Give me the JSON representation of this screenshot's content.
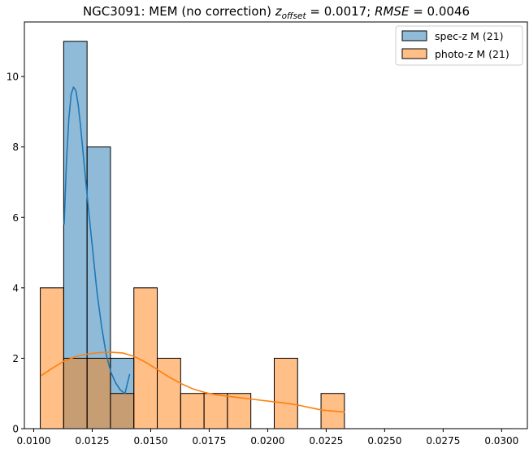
{
  "chart_data": {
    "type": "bar",
    "title": {
      "prefix": "NGC3091: MEM (no correction) ",
      "z_var": "z",
      "z_sub": "offset",
      "z_value": " = 0.0017; ",
      "rmse_var": "RMSE",
      "rmse_value": " = 0.0046"
    },
    "xlabel": "",
    "ylabel": "",
    "xlim": [
      0.0096,
      0.0311
    ],
    "ylim": [
      0,
      11.55
    ],
    "x_ticks": [
      {
        "value": 0.01,
        "label": "0.0100"
      },
      {
        "value": 0.0125,
        "label": "0.0125"
      },
      {
        "value": 0.015,
        "label": "0.0150"
      },
      {
        "value": 0.0175,
        "label": "0.0175"
      },
      {
        "value": 0.02,
        "label": "0.0200"
      },
      {
        "value": 0.0225,
        "label": "0.0225"
      },
      {
        "value": 0.025,
        "label": "0.0250"
      },
      {
        "value": 0.0275,
        "label": "0.0275"
      },
      {
        "value": 0.03,
        "label": "0.0300"
      }
    ],
    "y_ticks": [
      {
        "value": 0,
        "label": "0"
      },
      {
        "value": 2,
        "label": "2"
      },
      {
        "value": 4,
        "label": "4"
      },
      {
        "value": 6,
        "label": "6"
      },
      {
        "value": 8,
        "label": "8"
      },
      {
        "value": 10,
        "label": "10"
      }
    ],
    "grid": false,
    "legend_position": "top-right",
    "reference_line": {
      "y": 0,
      "x_range": [
        0.0103,
        0.0305
      ]
    },
    "series": [
      {
        "name": "spec-z M (21)",
        "color": "#1f77b4",
        "bins": [
          {
            "x0": 0.01128,
            "x1": 0.01228,
            "count": 11
          },
          {
            "x0": 0.01228,
            "x1": 0.01328,
            "count": 8
          },
          {
            "x0": 0.01328,
            "x1": 0.01428,
            "count": 2
          }
        ],
        "kde": [
          [
            0.0113,
            5.8
          ],
          [
            0.0114,
            7.6
          ],
          [
            0.0115,
            8.8
          ],
          [
            0.0116,
            9.5
          ],
          [
            0.0117,
            9.7
          ],
          [
            0.0118,
            9.6
          ],
          [
            0.0119,
            9.2
          ],
          [
            0.012,
            8.6
          ],
          [
            0.0121,
            7.9
          ],
          [
            0.0122,
            7.2
          ],
          [
            0.0123,
            6.5
          ],
          [
            0.0125,
            5.2
          ],
          [
            0.0127,
            3.9
          ],
          [
            0.0129,
            2.9
          ],
          [
            0.0131,
            2.1
          ],
          [
            0.0133,
            1.6
          ],
          [
            0.0135,
            1.3
          ],
          [
            0.0137,
            1.1
          ],
          [
            0.0139,
            1.0
          ],
          [
            0.0141,
            1.55
          ]
        ]
      },
      {
        "name": "photo-z M (21)",
        "color": "#ff7f0e",
        "bins": [
          {
            "x0": 0.01028,
            "x1": 0.01128,
            "count": 4
          },
          {
            "x0": 0.01128,
            "x1": 0.01228,
            "count": 2
          },
          {
            "x0": 0.01228,
            "x1": 0.01328,
            "count": 2
          },
          {
            "x0": 0.01328,
            "x1": 0.01428,
            "count": 1
          },
          {
            "x0": 0.01428,
            "x1": 0.01528,
            "count": 4
          },
          {
            "x0": 0.01528,
            "x1": 0.01628,
            "count": 2
          },
          {
            "x0": 0.01628,
            "x1": 0.01728,
            "count": 1
          },
          {
            "x0": 0.01728,
            "x1": 0.01828,
            "count": 1
          },
          {
            "x0": 0.01828,
            "x1": 0.01928,
            "count": 1
          },
          {
            "x0": 0.01928,
            "x1": 0.02028,
            "count": 0
          },
          {
            "x0": 0.02028,
            "x1": 0.02128,
            "count": 2
          },
          {
            "x0": 0.02128,
            "x1": 0.02228,
            "count": 0
          },
          {
            "x0": 0.02228,
            "x1": 0.02328,
            "count": 1
          }
        ],
        "kde": [
          [
            0.0103,
            1.5
          ],
          [
            0.0108,
            1.72
          ],
          [
            0.0113,
            1.92
          ],
          [
            0.0118,
            2.05
          ],
          [
            0.0123,
            2.12
          ],
          [
            0.0128,
            2.16
          ],
          [
            0.0133,
            2.17
          ],
          [
            0.0138,
            2.15
          ],
          [
            0.0143,
            2.05
          ],
          [
            0.0148,
            1.88
          ],
          [
            0.0153,
            1.67
          ],
          [
            0.0158,
            1.46
          ],
          [
            0.0163,
            1.28
          ],
          [
            0.0168,
            1.13
          ],
          [
            0.0173,
            1.03
          ],
          [
            0.0178,
            0.96
          ],
          [
            0.0183,
            0.92
          ],
          [
            0.0188,
            0.88
          ],
          [
            0.0193,
            0.84
          ],
          [
            0.0198,
            0.8
          ],
          [
            0.0203,
            0.76
          ],
          [
            0.0208,
            0.72
          ],
          [
            0.0213,
            0.67
          ],
          [
            0.0218,
            0.6
          ],
          [
            0.0223,
            0.53
          ],
          [
            0.0233,
            0.47
          ]
        ]
      }
    ]
  }
}
